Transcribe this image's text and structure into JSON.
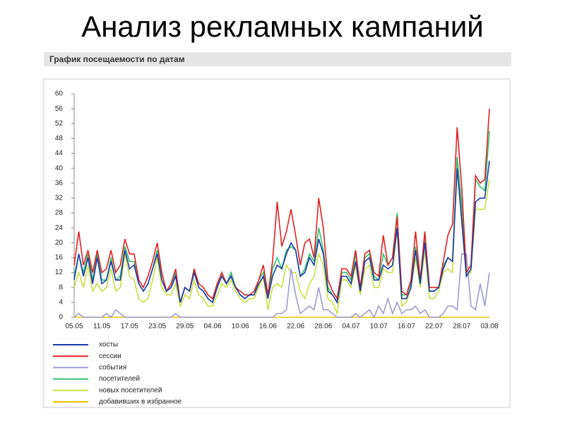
{
  "title": "Анализ рекламных кампаний",
  "chart_data": {
    "type": "line",
    "title": "График посещаемости по датам",
    "categories": [
      "05.05",
      null,
      null,
      null,
      null,
      null,
      "11.05",
      null,
      null,
      null,
      null,
      null,
      "17.05",
      null,
      null,
      null,
      null,
      null,
      "23.05",
      null,
      null,
      null,
      null,
      null,
      "29.05",
      null,
      null,
      null,
      null,
      null,
      "04.06",
      null,
      null,
      null,
      null,
      null,
      "10.06",
      null,
      null,
      null,
      null,
      null,
      "16.06",
      null,
      null,
      null,
      null,
      null,
      "22.06",
      null,
      null,
      null,
      null,
      null,
      "28.06",
      null,
      null,
      null,
      null,
      null,
      "04.07",
      null,
      null,
      null,
      null,
      null,
      "10.07",
      null,
      null,
      null,
      null,
      null,
      "16.07",
      null,
      null,
      null,
      null,
      null,
      "22.07",
      null,
      null,
      null,
      null,
      null,
      "28.07",
      null,
      null,
      null,
      null,
      null,
      "03.08"
    ],
    "series": [
      {
        "name": "хосты",
        "color": "#1c3aa8",
        "values": [
          10,
          17,
          11,
          16,
          9,
          16,
          9,
          10,
          15,
          10,
          10,
          18,
          13,
          14,
          9,
          7,
          9,
          13,
          17,
          10,
          7,
          8,
          11,
          4,
          8,
          7,
          12,
          8,
          7,
          5,
          4,
          8,
          11,
          9,
          11,
          8,
          6,
          5,
          6,
          6,
          9,
          11,
          5,
          11,
          14,
          13,
          17,
          20,
          18,
          11,
          12,
          16,
          14,
          21,
          17,
          7,
          6,
          4,
          11,
          11,
          9,
          15,
          7,
          15,
          16,
          10,
          10,
          14,
          13,
          14,
          24,
          5,
          5,
          8,
          18,
          9,
          20,
          7,
          7,
          8,
          13,
          16,
          15,
          40,
          26,
          11,
          13,
          31,
          32,
          32,
          42
        ]
      },
      {
        "name": "сессии",
        "color": "#e02020",
        "values": [
          14,
          23,
          14,
          18,
          12,
          18,
          12,
          13,
          18,
          12,
          14,
          21,
          17,
          17,
          10,
          8,
          11,
          15,
          20,
          12,
          7,
          9,
          13,
          4,
          8,
          7,
          13,
          9,
          8,
          6,
          5,
          9,
          12,
          9,
          11,
          8,
          7,
          6,
          6,
          7,
          10,
          14,
          6,
          15,
          31,
          19,
          23,
          29,
          22,
          14,
          20,
          21,
          16,
          32,
          24,
          10,
          7,
          5,
          13,
          13,
          11,
          18,
          8,
          17,
          18,
          12,
          11,
          22,
          14,
          16,
          27,
          7,
          6,
          10,
          23,
          10,
          23,
          8,
          8,
          8,
          15,
          22,
          25,
          51,
          35,
          12,
          14,
          38,
          36,
          37,
          56
        ]
      },
      {
        "name": "события",
        "color": "#9c9cd0",
        "values": [
          0,
          1,
          0,
          0,
          0,
          0,
          0,
          1,
          0,
          2,
          1,
          0,
          0,
          0,
          0,
          0,
          0,
          0,
          0,
          0,
          0,
          0,
          1,
          0,
          0,
          0,
          0,
          0,
          0,
          0,
          0,
          0,
          0,
          0,
          0,
          0,
          0,
          0,
          0,
          0,
          0,
          0,
          0,
          0,
          1,
          1,
          2,
          13,
          6,
          1,
          2,
          3,
          2,
          8,
          2,
          2,
          1,
          0,
          0,
          0,
          0,
          1,
          0,
          1,
          2,
          0,
          3,
          1,
          5,
          1,
          4,
          1,
          2,
          2,
          3,
          1,
          2,
          0,
          0,
          0,
          1,
          3,
          3,
          2,
          17,
          17,
          3,
          2,
          9,
          3,
          12
        ]
      },
      {
        "name": "посетителей",
        "color": "#30c070",
        "values": [
          11,
          17,
          12,
          17,
          10,
          17,
          10,
          10,
          16,
          10,
          11,
          19,
          15,
          15,
          9,
          7,
          9,
          13,
          18,
          10,
          7,
          8,
          12,
          4,
          8,
          7,
          12,
          8,
          7,
          5,
          4,
          8,
          12,
          9,
          12,
          8,
          6,
          5,
          6,
          6,
          10,
          12,
          5,
          13,
          16,
          13,
          18,
          19,
          18,
          11,
          13,
          17,
          15,
          24,
          18,
          8,
          6,
          4,
          12,
          12,
          10,
          17,
          7,
          16,
          17,
          11,
          10,
          17,
          14,
          16,
          28,
          6,
          6,
          9,
          19,
          9,
          21,
          7,
          7,
          8,
          14,
          16,
          15,
          43,
          30,
          12,
          14,
          37,
          35,
          34,
          50
        ]
      },
      {
        "name": "новых посетителей",
        "color": "#c8e040",
        "values": [
          8,
          12,
          8,
          14,
          7,
          9,
          7,
          8,
          13,
          7,
          8,
          17,
          11,
          10,
          5,
          4,
          5,
          10,
          16,
          8,
          6,
          6,
          9,
          3,
          6,
          5,
          10,
          6,
          5,
          3,
          3,
          6,
          9,
          8,
          10,
          7,
          5,
          4,
          5,
          5,
          8,
          11,
          2,
          8,
          9,
          8,
          14,
          12,
          12,
          7,
          5,
          9,
          11,
          17,
          14,
          5,
          4,
          1,
          10,
          10,
          8,
          14,
          6,
          13,
          14,
          8,
          8,
          13,
          12,
          12,
          24,
          3,
          4,
          8,
          16,
          8,
          18,
          5,
          5,
          7,
          12,
          13,
          12,
          42,
          25,
          11,
          12,
          29,
          29,
          29,
          37
        ]
      },
      {
        "name": "добавивших в избранное",
        "color": "#e8c400",
        "values": [
          0,
          0,
          0,
          0,
          0,
          0,
          0,
          0,
          0,
          0,
          0,
          0,
          0,
          0,
          0,
          0,
          0,
          0,
          0,
          0,
          0,
          0,
          0,
          0,
          0,
          0,
          0,
          0,
          0,
          0,
          0,
          0,
          0,
          0,
          0,
          0,
          0,
          0,
          0,
          0,
          0,
          0,
          0,
          0,
          0,
          0,
          0,
          0,
          0,
          0,
          0,
          0,
          0,
          0,
          0,
          0,
          0,
          0,
          0,
          0,
          0,
          0,
          0,
          0,
          0,
          0,
          0,
          0,
          0,
          0,
          0,
          0,
          0,
          0,
          0,
          0,
          0,
          0,
          0,
          0,
          0,
          0,
          0,
          0,
          0,
          0,
          0,
          0,
          0,
          0,
          0
        ]
      }
    ],
    "ylim": [
      0,
      60
    ],
    "yticks": [
      0,
      4,
      8,
      12,
      16,
      20,
      24,
      28,
      32,
      36,
      40,
      44,
      48,
      52,
      56,
      60
    ],
    "grid": false
  }
}
